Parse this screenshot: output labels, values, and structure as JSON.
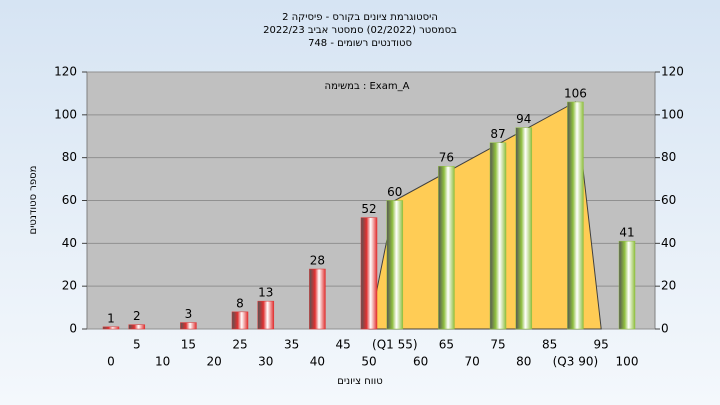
{
  "chart_data": {
    "type": "bar",
    "title": "היסטוגרמת ציונים בקורס - פיסיקה 2",
    "subtitle": "בסמסטר  (02/2022)  סמסטר אביב 2022/23",
    "subtitle2": "סטודנטים רשומים - 748",
    "annotation": "במשימה : Exam_A",
    "x_label": "טווח ציונים",
    "y_label": "מספר סטודנטים",
    "categories": [
      "0",
      "5",
      "10",
      "15",
      "20",
      "25",
      "30",
      "35",
      "40",
      "45",
      "50",
      "(Q1 55)",
      "60",
      "65",
      "70",
      "75",
      "80",
      "85",
      "(Q3 90)",
      "95",
      "100"
    ],
    "values": [
      1,
      2,
      null,
      3,
      null,
      8,
      13,
      null,
      28,
      null,
      52,
      60,
      null,
      76,
      null,
      87,
      94,
      null,
      106,
      null,
      41
    ],
    "colors": [
      "#e03030",
      "#e03030",
      null,
      "#e03030",
      null,
      "#e03030",
      "#e03030",
      null,
      "#e03030",
      null,
      "#e03030",
      "#8fbf3f",
      null,
      "#8fbf3f",
      null,
      "#8fbf3f",
      "#8fbf3f",
      null,
      "#8fbf3f",
      null,
      "#8fbf3f"
    ],
    "area": {
      "x": [
        50,
        55,
        90,
        95
      ],
      "values": [
        0,
        60,
        106,
        0
      ],
      "color": "#ffcc55"
    },
    "ylim": [
      0,
      120
    ],
    "yticks": [
      0,
      20,
      40,
      60,
      80,
      100,
      120
    ],
    "grid": true
  }
}
